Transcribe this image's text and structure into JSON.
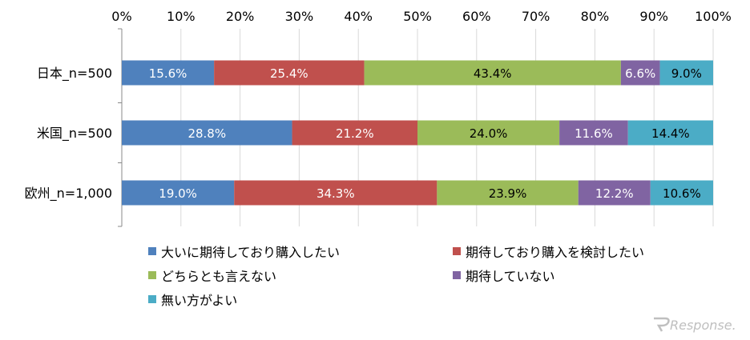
{
  "chart_data": {
    "type": "bar",
    "orientation": "horizontal",
    "stacked": true,
    "xlim": [
      0,
      100
    ],
    "x_ticks": [
      "0%",
      "10%",
      "20%",
      "30%",
      "40%",
      "50%",
      "60%",
      "70%",
      "80%",
      "90%",
      "100%"
    ],
    "categories": [
      "日本_n=500",
      "米国_n=500",
      "欧州_n=1,000"
    ],
    "series": [
      {
        "name": "大いに期待しており購入したい",
        "color": "#4f81bd",
        "values": [
          15.6,
          28.8,
          19.0
        ],
        "labels": [
          "15.6%",
          "28.8%",
          "19.0%"
        ]
      },
      {
        "name": "期待しており購入を検討したい",
        "color": "#c0504d",
        "values": [
          25.4,
          21.2,
          34.3
        ],
        "labels": [
          "25.4%",
          "21.2%",
          "34.3%"
        ]
      },
      {
        "name": "どちらとも言えない",
        "color": "#9bbb59",
        "values": [
          43.4,
          24.0,
          23.9
        ],
        "labels": [
          "43.4%",
          "24.0%",
          "23.9%"
        ]
      },
      {
        "name": "期待していない",
        "color": "#8064a2",
        "values": [
          6.6,
          11.6,
          12.2
        ],
        "labels": [
          "6.6%",
          "11.6%",
          "12.2%"
        ]
      },
      {
        "name": "無い方がよい",
        "color": "#4bacc6",
        "values": [
          9.0,
          14.4,
          10.6
        ],
        "labels": [
          "9.0%",
          "14.4%",
          "10.6%"
        ]
      }
    ],
    "grid": true,
    "legend_position": "bottom"
  },
  "watermark": "Response."
}
